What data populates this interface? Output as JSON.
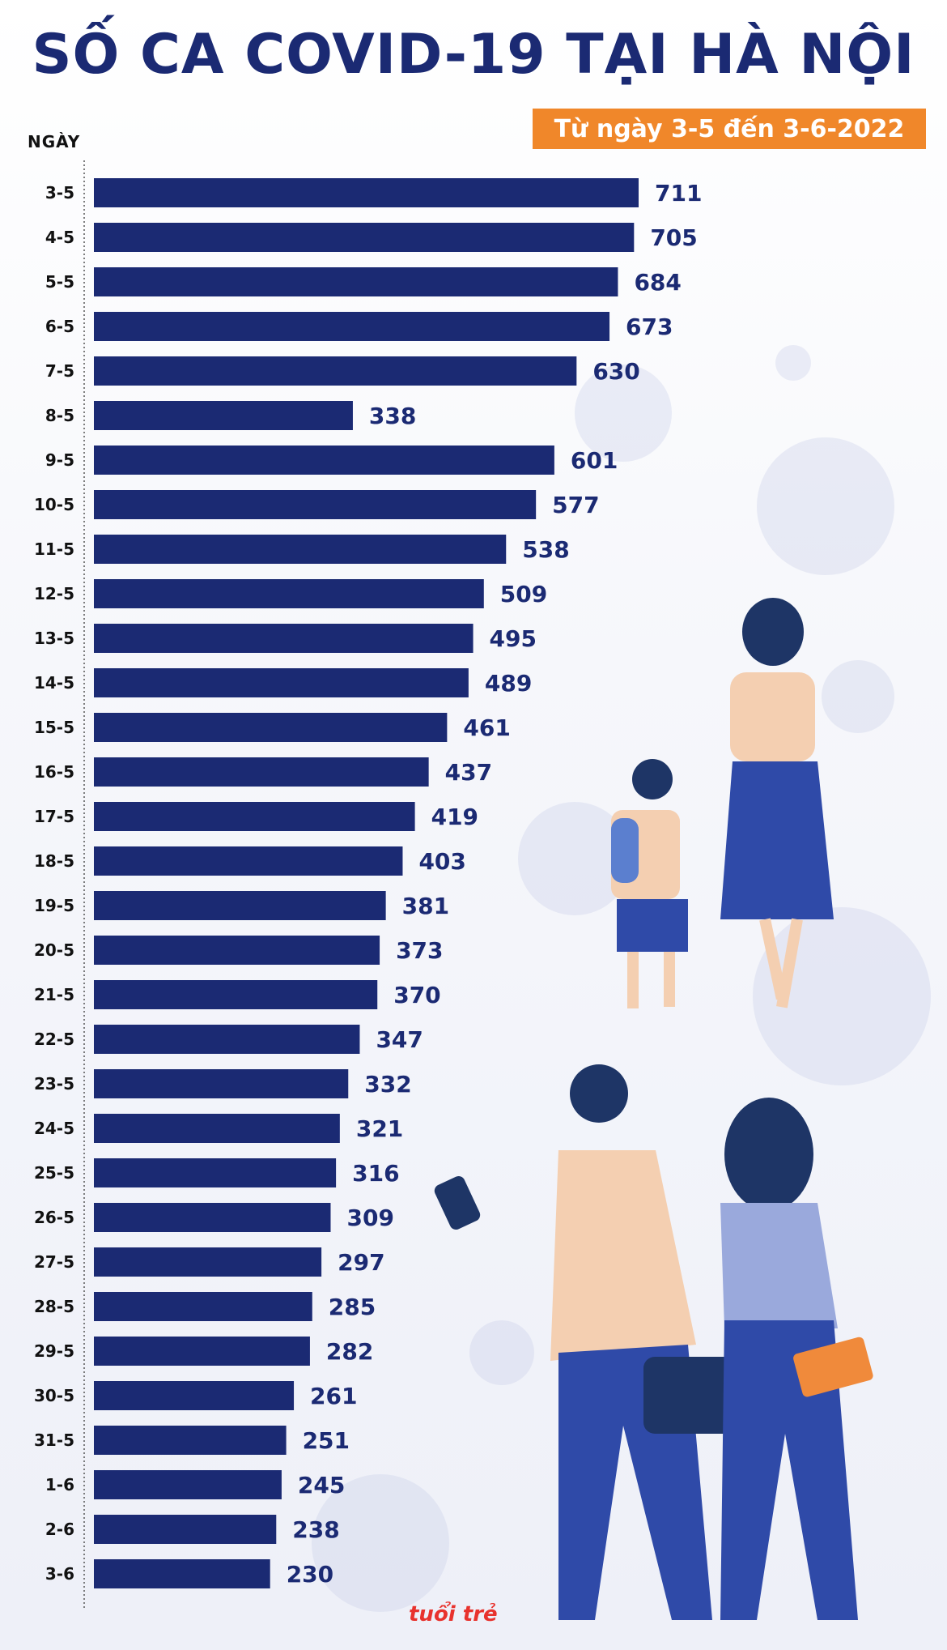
{
  "title": "SỐ CA COVID-19 TẠI HÀ NỘI",
  "subtitle": "Từ ngày 3-5 đến 3-6-2022",
  "logo_text": "tuổi trẻ",
  "colors": {
    "bar": "#1b2a73",
    "accent": "#f0872a",
    "title": "#1b2a73"
  },
  "chart_data": {
    "type": "bar",
    "orientation": "horizontal",
    "title": "SỐ CA COVID-19 TẠI HÀ NỘI",
    "subtitle": "Từ ngày 3-5 đến 3-6-2022",
    "ylabel": "NGÀY",
    "xlabel": "",
    "categories": [
      "3-5",
      "4-5",
      "5-5",
      "6-5",
      "7-5",
      "8-5",
      "9-5",
      "10-5",
      "11-5",
      "12-5",
      "13-5",
      "14-5",
      "15-5",
      "16-5",
      "17-5",
      "18-5",
      "19-5",
      "20-5",
      "21-5",
      "22-5",
      "23-5",
      "24-5",
      "25-5",
      "26-5",
      "27-5",
      "28-5",
      "29-5",
      "30-5",
      "31-5",
      "1-6",
      "2-6",
      "3-6"
    ],
    "values": [
      711,
      705,
      684,
      673,
      630,
      338,
      601,
      577,
      538,
      509,
      495,
      489,
      461,
      437,
      419,
      403,
      381,
      373,
      370,
      347,
      332,
      321,
      316,
      309,
      297,
      285,
      282,
      261,
      251,
      245,
      238,
      230
    ],
    "xlim": [
      0,
      711
    ],
    "grid": false,
    "legend": "none"
  }
}
